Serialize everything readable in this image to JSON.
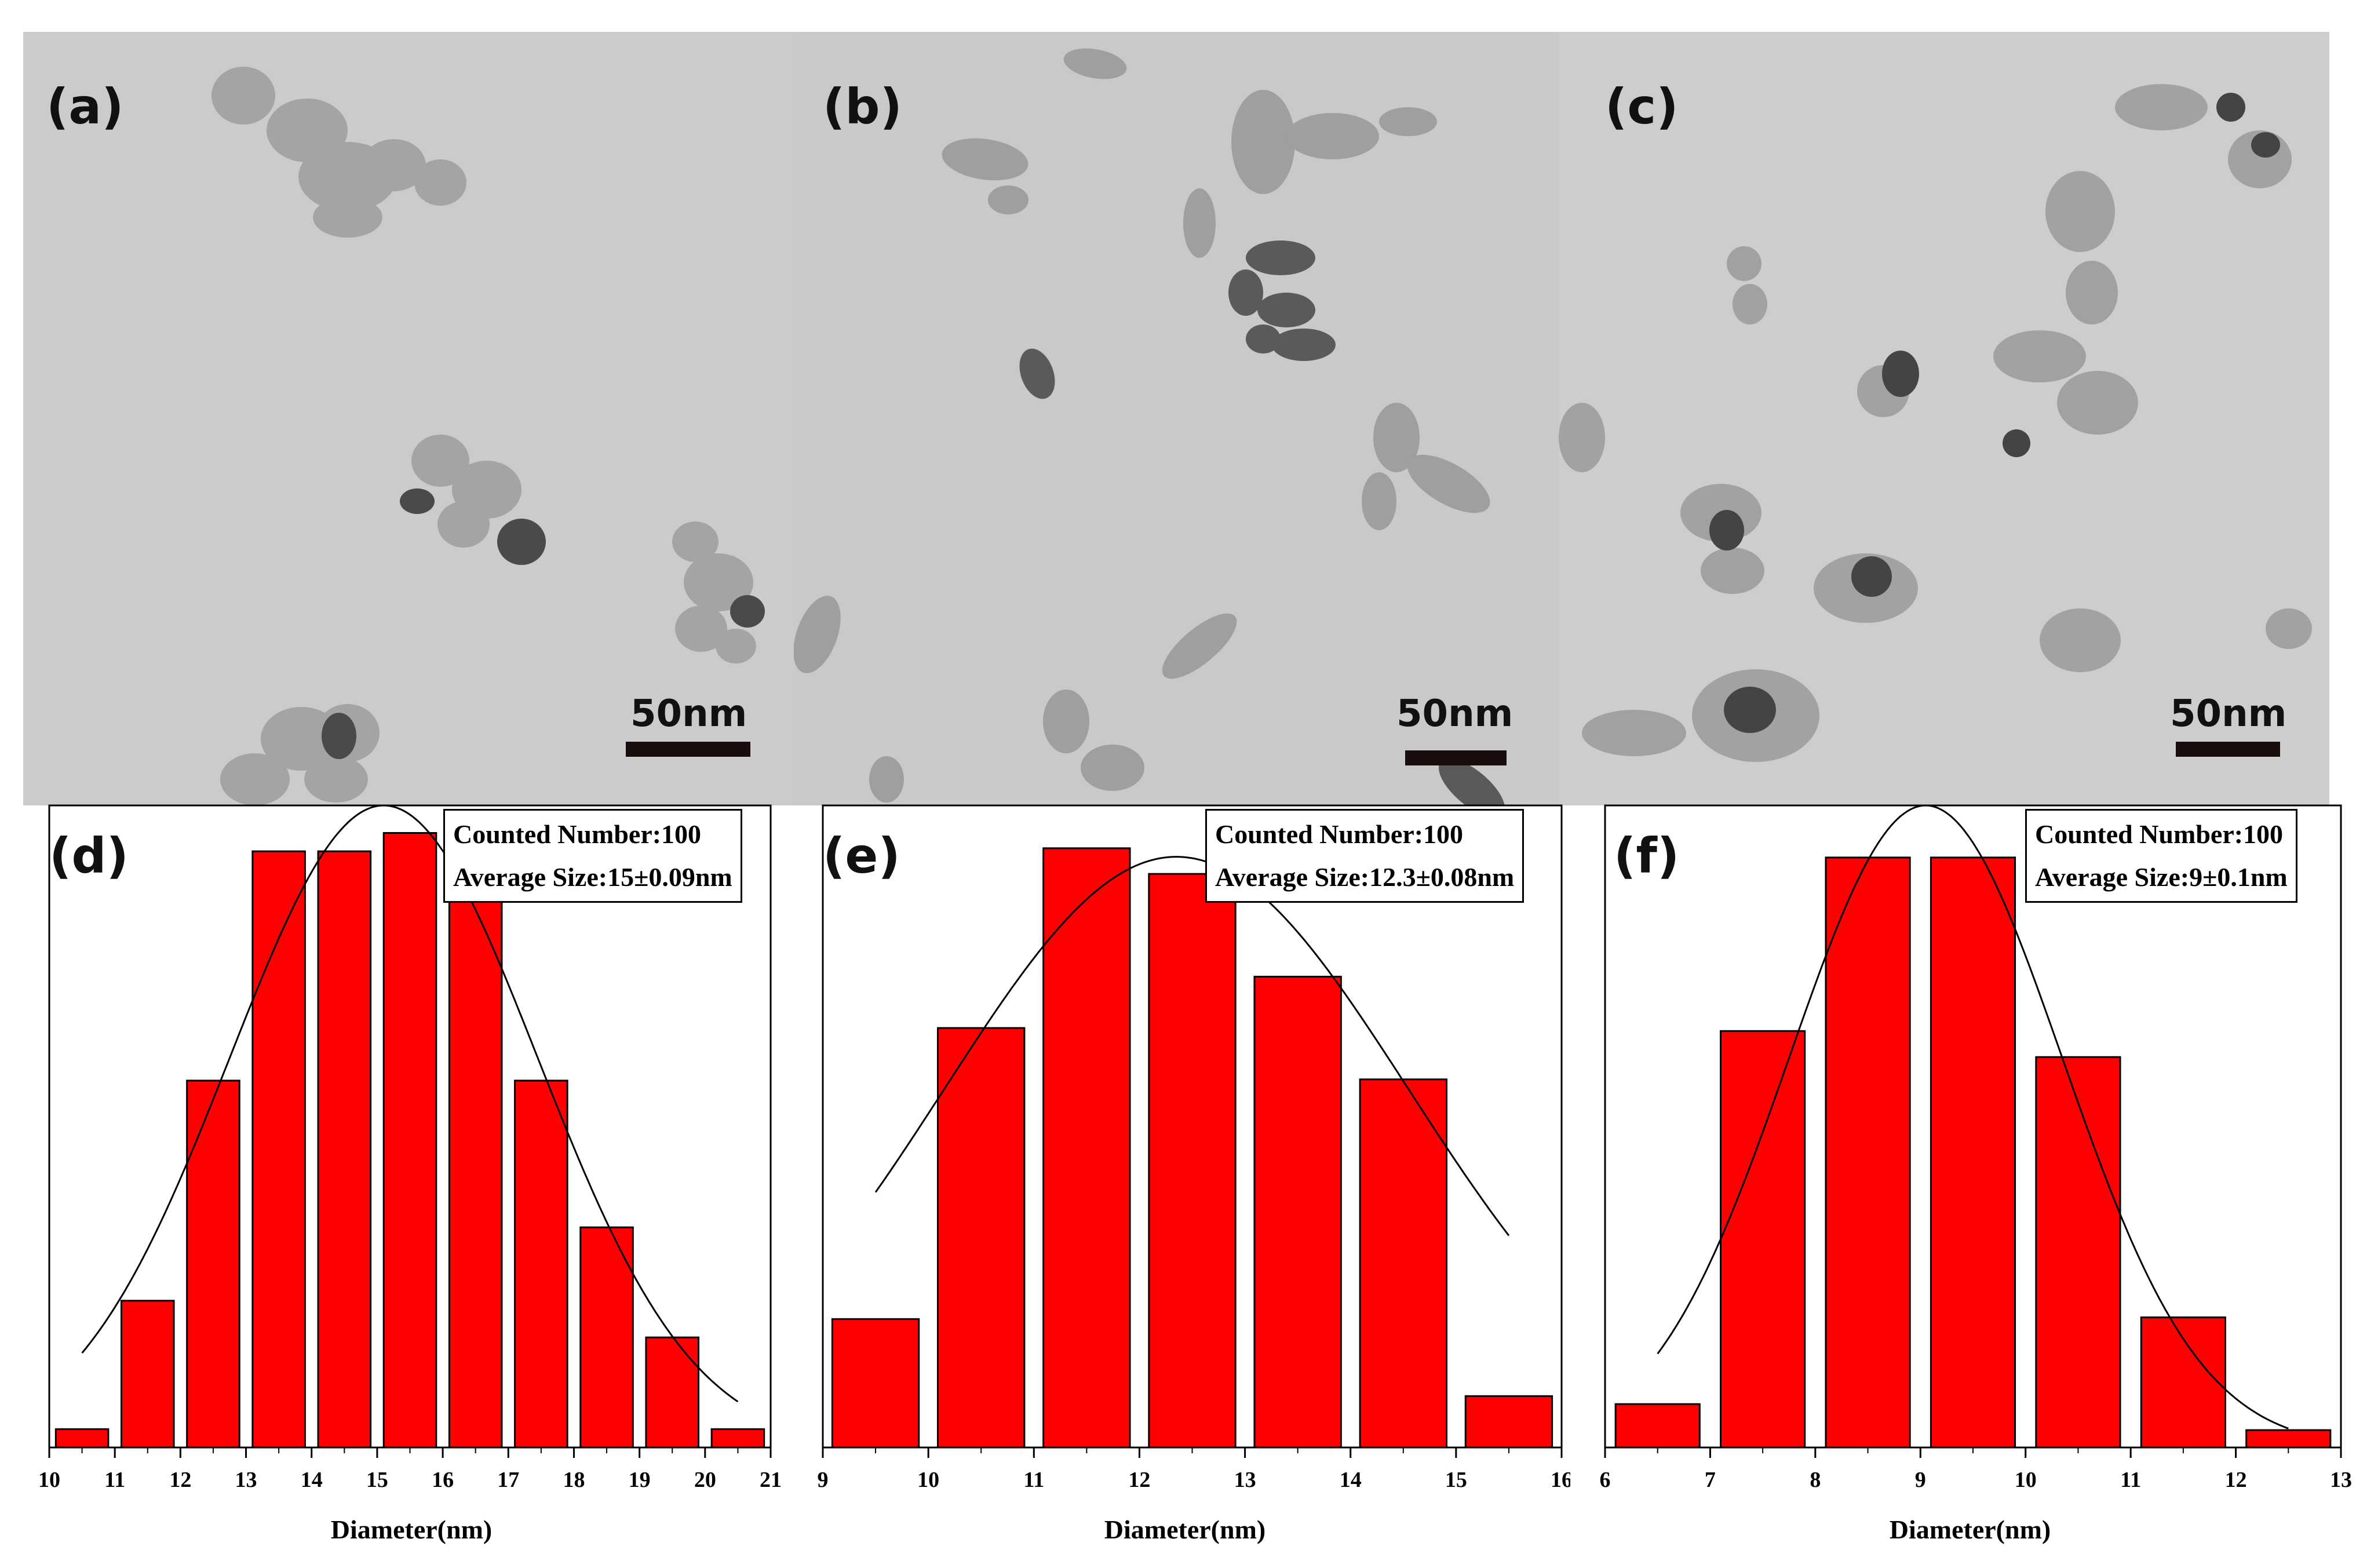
{
  "tem_panels": [
    {
      "label": "(a)",
      "scale": "50nm"
    },
    {
      "label": "(b)",
      "scale": "50nm"
    },
    {
      "label": "(c)",
      "scale": "50nm"
    }
  ],
  "colors": {
    "bar": "#ff0000",
    "bar_edge": "#000000",
    "fit_curve": "#000000"
  },
  "chart_data": [
    {
      "type": "bar",
      "label": "(d)",
      "info_line1": "Counted Number:100",
      "info_line2": "Average Size:15±0.09nm",
      "xlabel": "Diameter(nm)",
      "ylabel": "",
      "xlim": [
        10,
        21
      ],
      "xticks": [
        "10",
        "11",
        "12",
        "13",
        "14",
        "15",
        "16",
        "17",
        "18",
        "19",
        "20",
        "21"
      ],
      "bin_width": 0.8,
      "bins": [
        10.5,
        11.5,
        12.5,
        13.5,
        14.5,
        15.5,
        16.5,
        17.5,
        18.5,
        19.5,
        20.5
      ],
      "values": [
        2,
        16,
        40,
        65,
        65,
        67,
        60,
        40,
        24,
        12,
        2
      ],
      "ylim": [
        0,
        70
      ],
      "fit": {
        "mean": 15.1,
        "sd": 2.35,
        "peak": 70
      }
    },
    {
      "type": "bar",
      "label": "(e)",
      "info_line1": "Counted Number:100",
      "info_line2": "Average Size:12.3±0.08nm",
      "xlabel": "Diameter(nm)",
      "ylabel": "",
      "xlim": [
        9,
        16
      ],
      "xticks": [
        "9",
        "10",
        "11",
        "12",
        "13",
        "14",
        "15",
        "16"
      ],
      "bin_width": 0.82,
      "bins": [
        9.5,
        10.5,
        11.5,
        12.5,
        13.5,
        14.5,
        15.5
      ],
      "values": [
        15,
        49,
        70,
        67,
        55,
        43,
        6
      ],
      "ylim": [
        0,
        75
      ],
      "fit": {
        "mean": 12.35,
        "sd": 2.2,
        "peak": 69
      }
    },
    {
      "type": "bar",
      "label": "(f)",
      "info_line1": "Counted Number:100",
      "info_line2": "Average Size:9±0.1nm",
      "xlabel": "Diameter(nm)",
      "ylabel": "",
      "xlim": [
        6,
        13
      ],
      "xticks": [
        "6",
        "7",
        "8",
        "9",
        "10",
        "11",
        "12",
        "13"
      ],
      "bin_width": 0.8,
      "bins": [
        6.5,
        7.5,
        8.5,
        9.5,
        10.5,
        11.5,
        12.5
      ],
      "values": [
        5,
        48,
        68,
        68,
        45,
        15,
        2
      ],
      "ylim": [
        0,
        74
      ],
      "fit": {
        "mean": 9.05,
        "sd": 1.3,
        "peak": 74
      }
    }
  ]
}
